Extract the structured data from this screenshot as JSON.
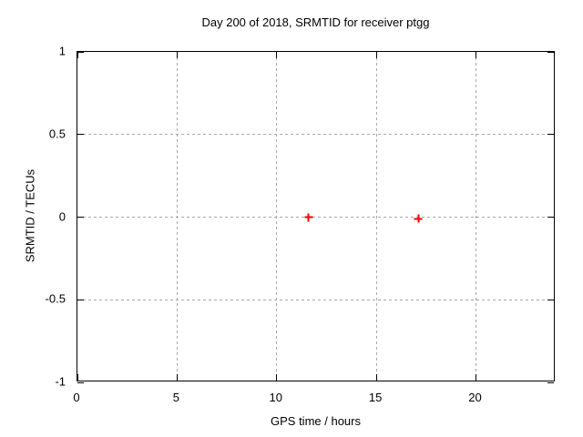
{
  "title": "Day 200 of 2018, SRMTID for receiver ptgg",
  "axes": {
    "xlabel": "GPS time / hours",
    "ylabel": "SRMTID / TECUs"
  },
  "colors": {
    "background": "#ffffff",
    "axis": "#000000",
    "grid": "#a8a8a8",
    "text": "#000000",
    "marker": "#ff0000"
  },
  "chart_data": {
    "type": "scatter",
    "title": "Day 200 of 2018, SRMTID for receiver ptgg",
    "xlabel": "GPS time / hours",
    "ylabel": "SRMTID / TECUs",
    "xlim": [
      0,
      24
    ],
    "ylim": [
      -1,
      1
    ],
    "grid": true,
    "legend": null,
    "x_ticks": [
      {
        "value": 0,
        "label": "0"
      },
      {
        "value": 5,
        "label": "5"
      },
      {
        "value": 10,
        "label": "10"
      },
      {
        "value": 15,
        "label": "15"
      },
      {
        "value": 20,
        "label": "20"
      }
    ],
    "y_ticks": [
      {
        "value": 1,
        "label": "1"
      },
      {
        "value": 0.5,
        "label": "0.5"
      },
      {
        "value": 0,
        "label": "0"
      },
      {
        "value": -0.5,
        "label": "-0.5"
      },
      {
        "value": -1,
        "label": "-1"
      }
    ],
    "series": [
      {
        "name": "SRMTID",
        "marker": "plus",
        "color": "#ff0000",
        "points": [
          {
            "x": 11.6,
            "y": 0.0
          },
          {
            "x": 17.1,
            "y": -0.01
          }
        ]
      }
    ]
  }
}
